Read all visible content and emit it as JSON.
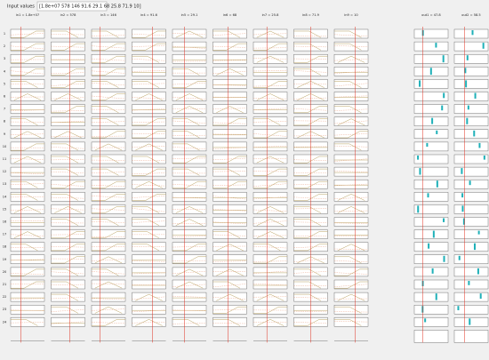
{
  "input_label": "Input values",
  "input_value": "[1.8e+07 578 146 91.6 29.1 68 25.8 71.9 10]",
  "headers": [
    "in1 = 1.8e+07",
    "in2 = 578",
    "in3 = 146",
    "in4 = 91.6",
    "in5 = 29.1",
    "in6 = 68",
    "in7 = 25.8",
    "in8 = 71.9",
    "in9 = 10",
    "out1 = 47.8",
    "out2 = 58.5"
  ],
  "rules": [
    1,
    2,
    3,
    4,
    5,
    6,
    7,
    8,
    9,
    10,
    11,
    12,
    13,
    14,
    15,
    16,
    17,
    18,
    19,
    20,
    21,
    22,
    23,
    24
  ]
}
